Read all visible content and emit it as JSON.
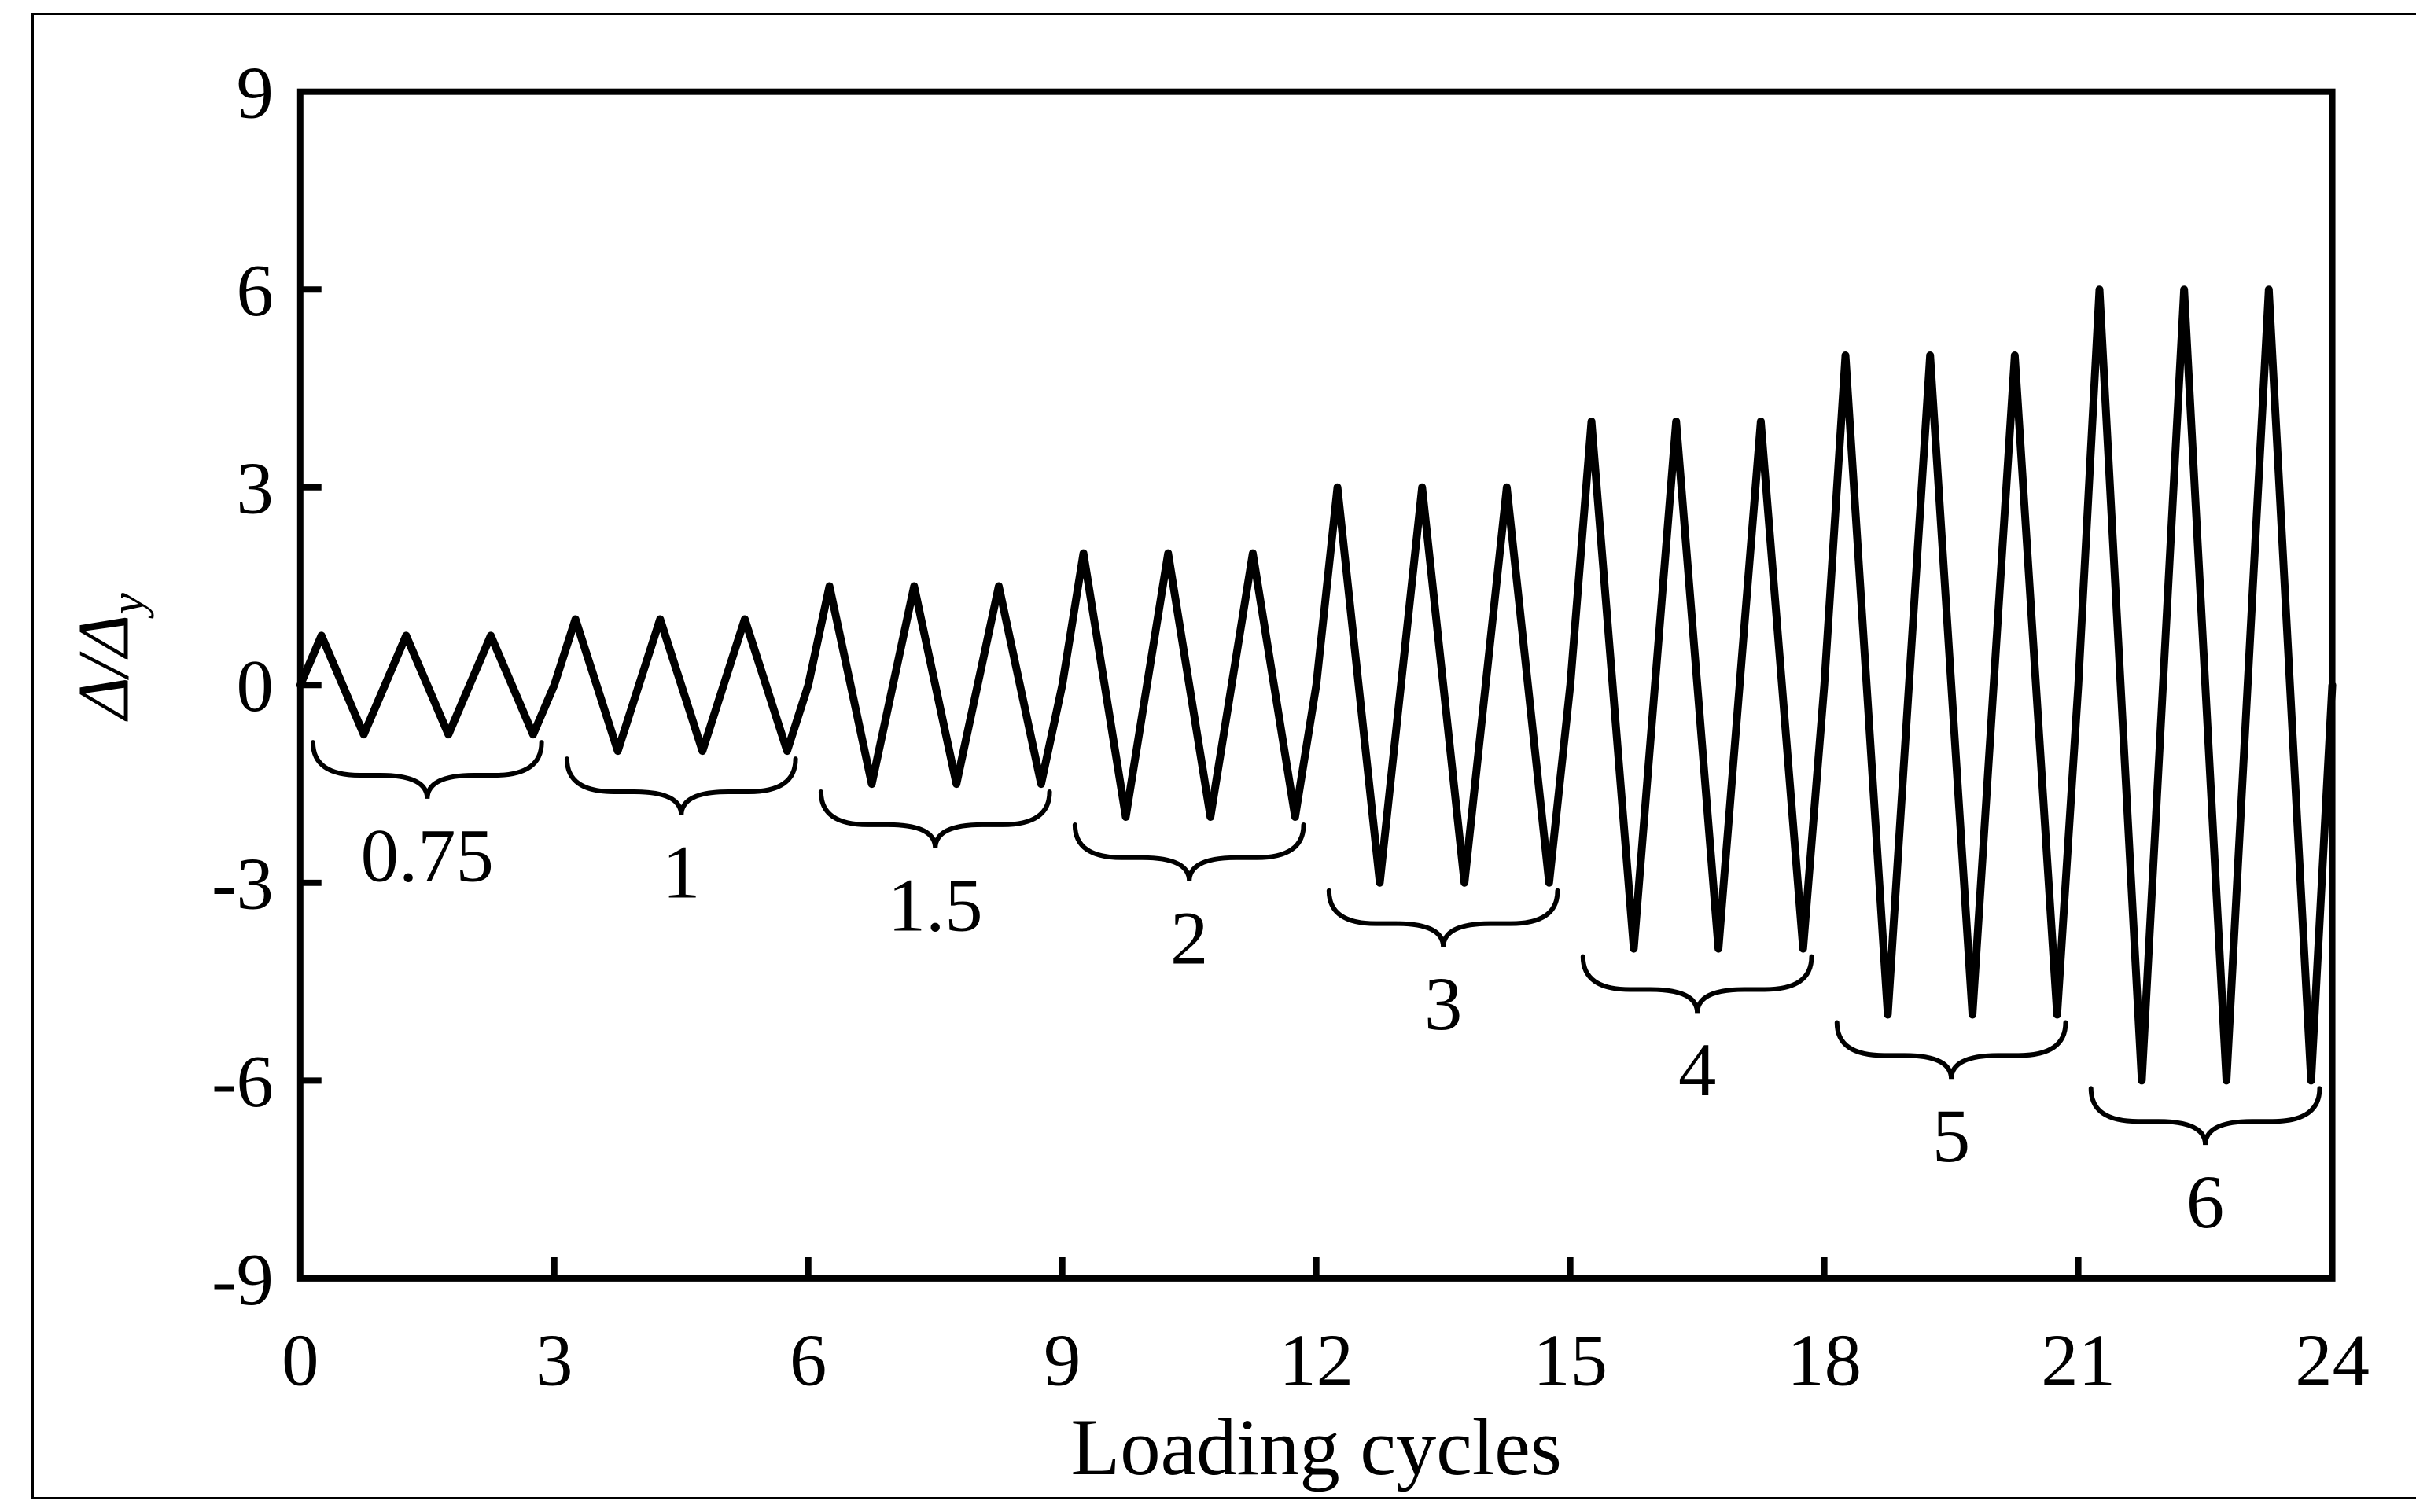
{
  "figure": {
    "background_color": "#ffffff",
    "line_color": "#000000",
    "frame_color": "#000000"
  },
  "chart_data": {
    "type": "line",
    "title": "",
    "xlabel": "Loading cycles",
    "ylabel_main": "Δ/Δ",
    "ylabel_subscript": "y",
    "xlim": [
      0,
      24
    ],
    "ylim": [
      -9,
      9
    ],
    "x_tick_labels": [
      "0",
      "3",
      "6",
      "9",
      "12",
      "15",
      "18",
      "21",
      "24"
    ],
    "x_tick_values": [
      0,
      3,
      6,
      9,
      12,
      15,
      18,
      21,
      24
    ],
    "y_tick_labels": [
      "9",
      "6",
      "3",
      "0",
      "-3",
      "-6",
      "-9"
    ],
    "y_tick_values": [
      9,
      6,
      3,
      0,
      -3,
      -6,
      -9
    ],
    "x_inner_tick_values": [
      3,
      6,
      9,
      12,
      15,
      18,
      21
    ],
    "y_inner_tick_values": [
      6,
      3,
      0,
      -3,
      -6
    ],
    "grid": false,
    "legend": null,
    "waveform_pattern": "each cycle: 0 at n, +A at n+0.25, -A at n+0.75, 0 at n+1",
    "amplitude_groups": [
      {
        "label": "0.75",
        "amplitude": 0.75,
        "cycles": 3,
        "x_start": 0,
        "x_end": 3
      },
      {
        "label": "1",
        "amplitude": 1,
        "cycles": 3,
        "x_start": 3,
        "x_end": 6
      },
      {
        "label": "1.5",
        "amplitude": 1.5,
        "cycles": 3,
        "x_start": 6,
        "x_end": 9
      },
      {
        "label": "2",
        "amplitude": 2,
        "cycles": 3,
        "x_start": 9,
        "x_end": 12
      },
      {
        "label": "3",
        "amplitude": 3,
        "cycles": 3,
        "x_start": 12,
        "x_end": 15
      },
      {
        "label": "4",
        "amplitude": 4,
        "cycles": 3,
        "x_start": 15,
        "x_end": 18
      },
      {
        "label": "5",
        "amplitude": 5,
        "cycles": 3,
        "x_start": 18,
        "x_end": 21
      },
      {
        "label": "6",
        "amplitude": 6,
        "cycles": 3,
        "x_start": 21,
        "x_end": 24
      }
    ]
  }
}
